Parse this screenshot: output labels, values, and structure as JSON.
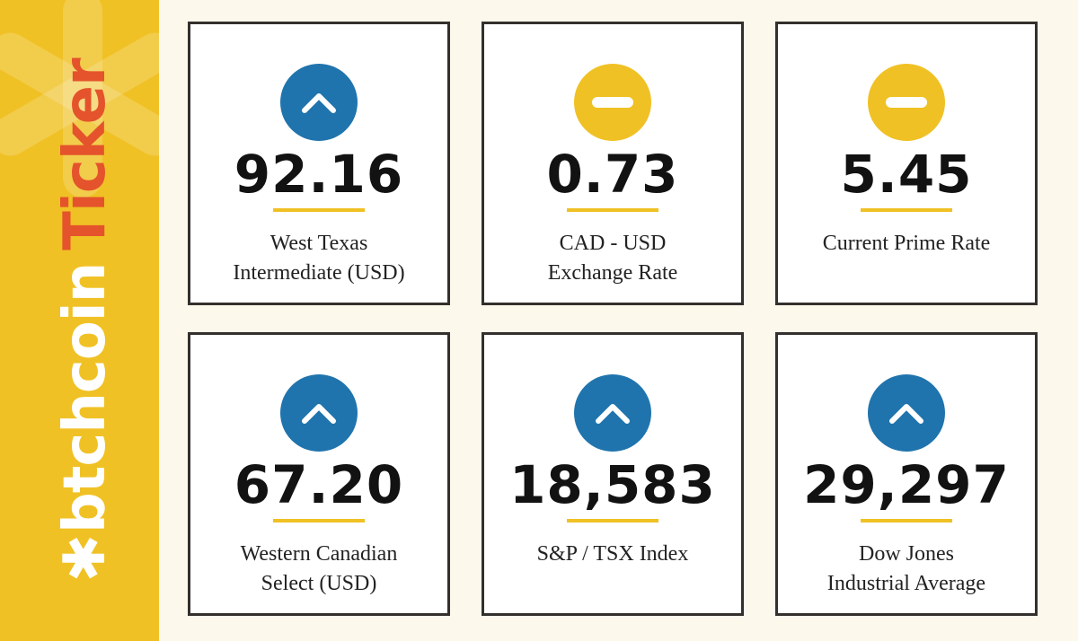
{
  "brand": {
    "logo_text": "btchcoin",
    "title": "Ticker"
  },
  "colors": {
    "up": "#1f74ad",
    "flat": "#f0c124",
    "accent": "#e4532c",
    "sidebar": "#f0c124"
  },
  "cards": [
    {
      "trend": "up",
      "icon": "chevron-up-icon",
      "value": "92.16",
      "label_lines": [
        "West Texas",
        "Intermediate (USD)"
      ]
    },
    {
      "trend": "flat",
      "icon": "minus-icon",
      "value": "0.73",
      "label_lines": [
        "CAD - USD",
        "Exchange Rate"
      ]
    },
    {
      "trend": "flat",
      "icon": "minus-icon",
      "value": "5.45",
      "label_lines": [
        "Current Prime Rate"
      ]
    },
    {
      "trend": "up",
      "icon": "chevron-up-icon",
      "value": "67.20",
      "label_lines": [
        "Western Canadian",
        "Select (USD)"
      ]
    },
    {
      "trend": "up",
      "icon": "chevron-up-icon",
      "value": "18,583",
      "label_lines": [
        "S&P / TSX Index"
      ]
    },
    {
      "trend": "up",
      "icon": "chevron-up-icon",
      "value": "29,297",
      "label_lines": [
        "Dow Jones",
        "Industrial Average"
      ]
    }
  ]
}
